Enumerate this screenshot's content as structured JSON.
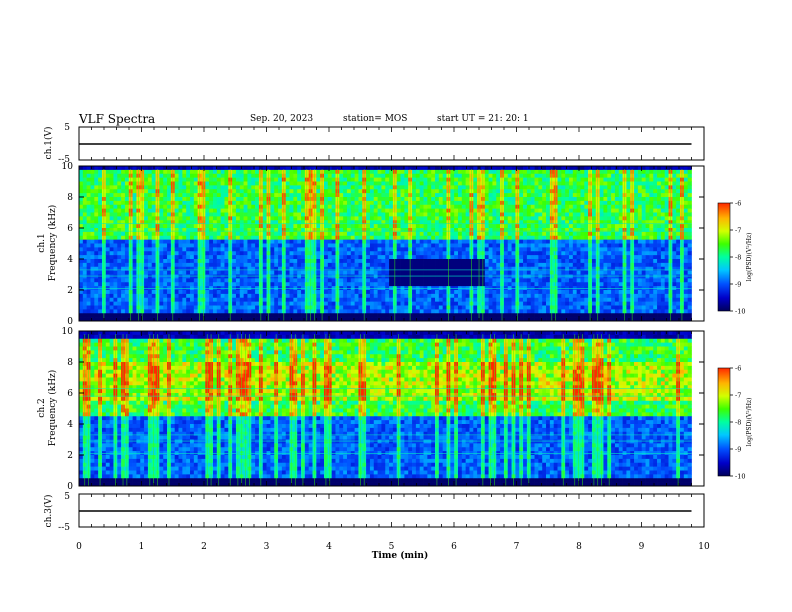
{
  "header": {
    "title": "VLF Spectra",
    "date": "Sep. 20, 2023",
    "station": "station= MOS",
    "start_time": "start  UT  =   21: 20: 1"
  },
  "chart_data": [
    {
      "type": "line",
      "name": "ch1-waveform",
      "ylabel": "ch.1(V)",
      "ylim": [
        -5,
        5
      ],
      "yticks": [
        5,
        -5
      ],
      "x": [
        0,
        9.8
      ],
      "y": [
        0,
        0
      ]
    },
    {
      "type": "heatmap",
      "name": "ch1-spectrogram",
      "ylabel_line1": "ch.1",
      "ylabel_line2": "Frequency (kHz)",
      "ylim": [
        0,
        10
      ],
      "yticks": [
        0,
        2,
        4,
        6,
        8,
        10
      ],
      "xlim": [
        0,
        10
      ],
      "data_xmax": 9.8,
      "strong_band_khz": [
        5.2,
        9.8
      ],
      "colorbar": {
        "label": "log(PSD)(V²/Hz)",
        "range": [
          -10,
          -6
        ],
        "ticks": [
          "-6",
          "-7",
          "-8",
          "-9",
          "-10"
        ]
      }
    },
    {
      "type": "heatmap",
      "name": "ch2-spectrogram",
      "ylabel_line1": "ch.2",
      "ylabel_line2": "Frequency (kHz)",
      "ylim": [
        0,
        10
      ],
      "yticks": [
        0,
        2,
        4,
        6,
        8,
        10
      ],
      "xlim": [
        0,
        10
      ],
      "data_xmax": 9.8,
      "strong_band_khz": [
        4.5,
        9.5
      ],
      "colorbar": {
        "label": "log(PSD)(V²/Hz)",
        "range": [
          -10,
          -6
        ],
        "ticks": [
          "-6",
          "-7",
          "-8",
          "-9",
          "-10"
        ]
      }
    },
    {
      "type": "line",
      "name": "ch3-waveform",
      "ylabel": "ch.3(V)",
      "ylim": [
        -5,
        5
      ],
      "yticks": [
        5,
        -5
      ],
      "x": [
        0,
        9.8
      ],
      "y": [
        0,
        0
      ],
      "xlabel": "Time  (min)",
      "xticks": [
        0,
        1,
        2,
        3,
        4,
        5,
        6,
        7,
        8,
        9,
        10
      ]
    }
  ],
  "colors": {
    "axis": "#000000",
    "colormap": [
      "#00005a",
      "#0000c8",
      "#0050ff",
      "#00c8ff",
      "#00ffa0",
      "#3cff00",
      "#d2ff00",
      "#ffb400",
      "#ff2800"
    ]
  }
}
